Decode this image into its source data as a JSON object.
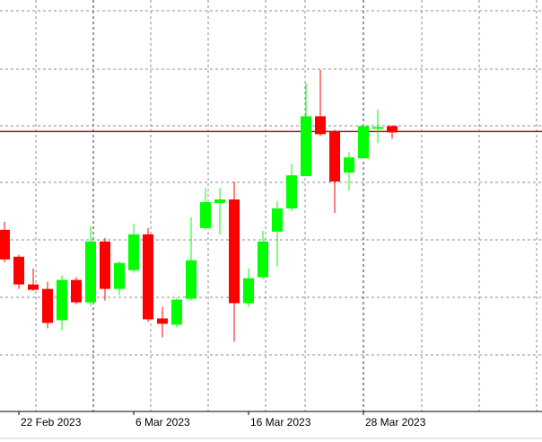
{
  "chart_data": {
    "type": "candlestick",
    "open": [
      203,
      173,
      142,
      137,
      102,
      147,
      122,
      190,
      137,
      158,
      198,
      104,
      97,
      126,
      205,
      233,
      237,
      121,
      150,
      201,
      227,
      263,
      330,
      313,
      267,
      283,
      316,
      319
    ],
    "high": [
      212,
      175,
      160,
      145,
      152,
      150,
      207,
      194,
      168,
      210,
      205,
      117,
      127,
      217,
      250,
      250,
      257,
      160,
      202,
      235,
      277,
      367,
      382,
      315,
      290,
      320,
      338,
      320
    ],
    "low": [
      167,
      137,
      135,
      93,
      91,
      120,
      118,
      124,
      130,
      155,
      100,
      83,
      94,
      124,
      203,
      198,
      78,
      117,
      148,
      162,
      224,
      263,
      308,
      222,
      247,
      282,
      300,
      305
    ],
    "close": [
      170,
      142,
      136,
      99,
      147,
      122,
      190,
      137,
      166,
      198,
      103,
      98,
      125,
      169,
      234,
      237,
      121,
      149,
      190,
      227,
      264,
      330,
      310,
      257,
      284,
      319,
      318,
      312
    ],
    "up_color": "#00ff00",
    "down_color": "#ff0000",
    "ylim": [
      0,
      460
    ],
    "xticks": [
      {
        "value": 1,
        "label": "22 Feb 2023"
      },
      {
        "value": 9,
        "label": "6 Mar 2023"
      },
      {
        "value": 17,
        "label": "16 Mar 2023"
      },
      {
        "value": 25,
        "label": "28 Mar 2023"
      }
    ],
    "hline": 313,
    "hline_color": "#b01010",
    "grid": true
  }
}
